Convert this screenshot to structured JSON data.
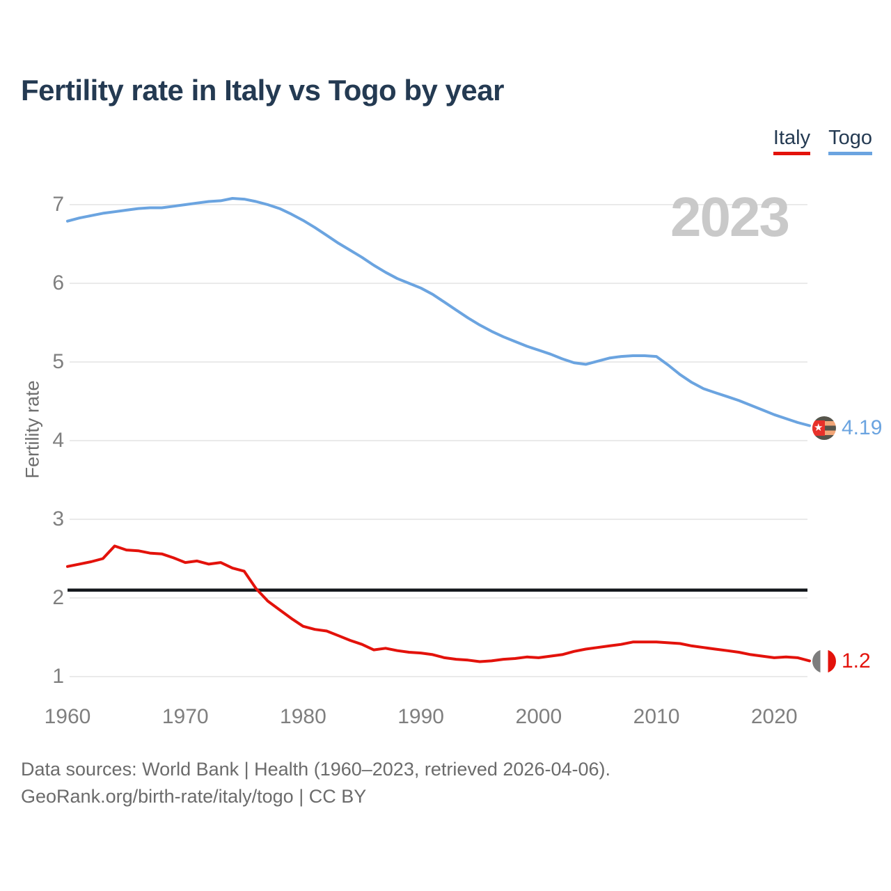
{
  "title": "Fertility rate in Italy vs Togo by year",
  "watermark": "2023",
  "ylabel": "Fertility rate",
  "legend": [
    {
      "label": "Italy",
      "color": "#e3120b"
    },
    {
      "label": "Togo",
      "color": "#6ba4e0"
    }
  ],
  "end_labels": {
    "togo": {
      "value": "4.19",
      "icon": "togo-flag-icon",
      "color": "#6ba4e0"
    },
    "italy": {
      "value": "1.2",
      "icon": "italy-flag-icon",
      "color": "#e3120b"
    }
  },
  "footer": {
    "line1": "Data sources: World Bank | Health (1960–2023, retrieved 2026-04-06).",
    "line2": "GeoRank.org/birth-rate/italy/togo | CC BY"
  },
  "chart_data": {
    "type": "line",
    "title": "Fertility rate in Italy vs Togo by year",
    "xlabel": "",
    "ylabel": "Fertility rate",
    "xlim": [
      1960,
      2023
    ],
    "ylim": [
      1,
      7.3
    ],
    "grid": "horizontal",
    "legend_position": "top-right",
    "yticks": [
      1,
      2,
      3,
      4,
      5,
      6,
      7
    ],
    "xticks": [
      1960,
      1970,
      1980,
      1990,
      2000,
      2010,
      2020
    ],
    "reference_line": {
      "y": 2.1,
      "color": "#14181c"
    },
    "x": [
      1960,
      1961,
      1962,
      1963,
      1964,
      1965,
      1966,
      1967,
      1968,
      1969,
      1970,
      1971,
      1972,
      1973,
      1974,
      1975,
      1976,
      1977,
      1978,
      1979,
      1980,
      1981,
      1982,
      1983,
      1984,
      1985,
      1986,
      1987,
      1988,
      1989,
      1990,
      1991,
      1992,
      1993,
      1994,
      1995,
      1996,
      1997,
      1998,
      1999,
      2000,
      2001,
      2002,
      2003,
      2004,
      2005,
      2006,
      2007,
      2008,
      2009,
      2010,
      2011,
      2012,
      2013,
      2014,
      2015,
      2016,
      2017,
      2018,
      2019,
      2020,
      2021,
      2022,
      2023
    ],
    "series": [
      {
        "name": "Italy",
        "color": "#e3120b",
        "final_value": 1.2,
        "values": [
          2.4,
          2.43,
          2.46,
          2.5,
          2.66,
          2.61,
          2.6,
          2.57,
          2.56,
          2.51,
          2.45,
          2.47,
          2.43,
          2.45,
          2.38,
          2.34,
          2.12,
          1.96,
          1.85,
          1.74,
          1.64,
          1.6,
          1.58,
          1.52,
          1.46,
          1.41,
          1.34,
          1.36,
          1.33,
          1.31,
          1.3,
          1.28,
          1.24,
          1.22,
          1.21,
          1.19,
          1.2,
          1.22,
          1.23,
          1.25,
          1.24,
          1.26,
          1.28,
          1.32,
          1.35,
          1.37,
          1.39,
          1.41,
          1.44,
          1.44,
          1.44,
          1.43,
          1.42,
          1.39,
          1.37,
          1.35,
          1.33,
          1.31,
          1.28,
          1.26,
          1.24,
          1.25,
          1.24,
          1.2
        ]
      },
      {
        "name": "Togo",
        "color": "#6ba4e0",
        "final_value": 4.19,
        "values": [
          6.79,
          6.83,
          6.86,
          6.89,
          6.91,
          6.93,
          6.95,
          6.96,
          6.96,
          6.98,
          7.0,
          7.02,
          7.04,
          7.05,
          7.08,
          7.07,
          7.04,
          7.0,
          6.95,
          6.88,
          6.8,
          6.71,
          6.61,
          6.51,
          6.42,
          6.33,
          6.23,
          6.14,
          6.06,
          6.0,
          5.94,
          5.86,
          5.76,
          5.66,
          5.56,
          5.47,
          5.39,
          5.32,
          5.26,
          5.2,
          5.15,
          5.1,
          5.04,
          4.99,
          4.97,
          5.01,
          5.05,
          5.07,
          5.08,
          5.08,
          5.07,
          4.96,
          4.84,
          4.74,
          4.66,
          4.61,
          4.56,
          4.51,
          4.45,
          4.39,
          4.33,
          4.28,
          4.23,
          4.19
        ]
      }
    ]
  }
}
